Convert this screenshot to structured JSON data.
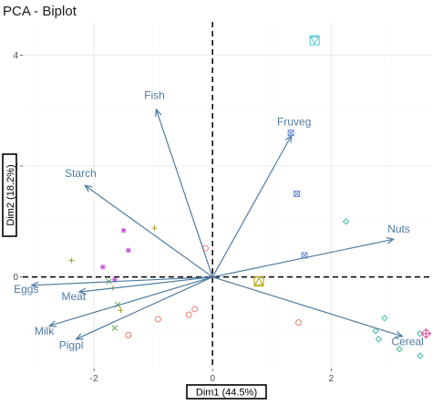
{
  "chart_data": {
    "type": "scatter",
    "title": "PCA - Biplot",
    "xlabel": "Dim1 (44.5%)",
    "ylabel": "Dim2 (18.2%)",
    "xlim": [
      -3.2,
      3.7
    ],
    "ylim": [
      -1.65,
      4.6
    ],
    "x_ticks": [
      -2,
      0,
      2
    ],
    "y_ticks": [
      0,
      2,
      4
    ],
    "grid": true,
    "legend": "none",
    "colors": {
      "arrow": "#4f7ba0",
      "label": "#4f7ba0",
      "zero_line": "#000000"
    },
    "variables": [
      {
        "name": "Fish",
        "x": -0.95,
        "y": 3.02
      },
      {
        "name": "Fruveg",
        "x": 1.33,
        "y": 2.55
      },
      {
        "name": "Starch",
        "x": -2.15,
        "y": 1.65
      },
      {
        "name": "Nuts",
        "x": 3.05,
        "y": 0.68
      },
      {
        "name": "Eggs",
        "x": -3.05,
        "y": -0.15
      },
      {
        "name": "Meat",
        "x": -2.25,
        "y": -0.27
      },
      {
        "name": "Milk",
        "x": -2.75,
        "y": -0.88
      },
      {
        "name": "Cereal",
        "x": 3.2,
        "y": -1.07
      },
      {
        "name": "Pigpl",
        "x": -2.3,
        "y": -1.12
      }
    ],
    "points": [
      {
        "x": 1.72,
        "y": 4.27,
        "shape": "triangle-down-square",
        "color": "#4ec1d3"
      },
      {
        "x": 1.32,
        "y": 2.6,
        "shape": "square-x",
        "color": "#6b8fd6"
      },
      {
        "x": 1.42,
        "y": 1.5,
        "shape": "square-x",
        "color": "#6b8fd6"
      },
      {
        "x": 1.55,
        "y": 0.39,
        "shape": "square-x",
        "color": "#6b8fd6"
      },
      {
        "x": 2.25,
        "y": 1.0,
        "shape": "diamond",
        "color": "#3fb9a0"
      },
      {
        "x": 2.9,
        "y": -0.74,
        "shape": "diamond",
        "color": "#3fb9a0"
      },
      {
        "x": 2.75,
        "y": -0.97,
        "shape": "diamond",
        "color": "#3fb9a0"
      },
      {
        "x": 2.8,
        "y": -1.12,
        "shape": "diamond",
        "color": "#3fb9a0"
      },
      {
        "x": 3.15,
        "y": -1.3,
        "shape": "diamond",
        "color": "#3fb9a0"
      },
      {
        "x": 3.5,
        "y": -1.02,
        "shape": "diamond",
        "color": "#3fb9a0"
      },
      {
        "x": 3.5,
        "y": -1.42,
        "shape": "diamond",
        "color": "#3fb9a0"
      },
      {
        "x": 3.6,
        "y": -1.02,
        "shape": "diamond-plus",
        "color": "#e2478f"
      },
      {
        "x": 0.78,
        "y": -0.08,
        "shape": "triangle-square",
        "color": "#b5a000"
      },
      {
        "x": -0.12,
        "y": 0.52,
        "shape": "circle",
        "color": "#e77b72"
      },
      {
        "x": -0.3,
        "y": -0.58,
        "shape": "circle",
        "color": "#e77b72"
      },
      {
        "x": -0.4,
        "y": -0.68,
        "shape": "circle",
        "color": "#e77b72"
      },
      {
        "x": -0.92,
        "y": -0.76,
        "shape": "circle",
        "color": "#e77b72"
      },
      {
        "x": -1.42,
        "y": -1.05,
        "shape": "circle",
        "color": "#e77b72"
      },
      {
        "x": 1.45,
        "y": -0.82,
        "shape": "circle",
        "color": "#e77b72"
      },
      {
        "x": -1.5,
        "y": 0.84,
        "shape": "asterisk",
        "color": "#c454d6"
      },
      {
        "x": -1.42,
        "y": 0.48,
        "shape": "asterisk",
        "color": "#c454d6"
      },
      {
        "x": -1.85,
        "y": 0.18,
        "shape": "asterisk",
        "color": "#c454d6"
      },
      {
        "x": -1.65,
        "y": -0.05,
        "shape": "asterisk",
        "color": "#c454d6"
      },
      {
        "x": -2.38,
        "y": 0.3,
        "shape": "plus",
        "color": "#a89b2b"
      },
      {
        "x": -0.98,
        "y": 0.88,
        "shape": "plus",
        "color": "#a89b2b"
      },
      {
        "x": -1.68,
        "y": -0.2,
        "shape": "plus",
        "color": "#a89b2b"
      },
      {
        "x": -1.55,
        "y": -0.6,
        "shape": "plus",
        "color": "#a89b2b"
      },
      {
        "x": -1.75,
        "y": -0.08,
        "shape": "cross",
        "color": "#5aa845"
      },
      {
        "x": -1.6,
        "y": -0.5,
        "shape": "cross",
        "color": "#5aa845"
      },
      {
        "x": -1.65,
        "y": -0.92,
        "shape": "cross",
        "color": "#5aa845"
      }
    ]
  }
}
